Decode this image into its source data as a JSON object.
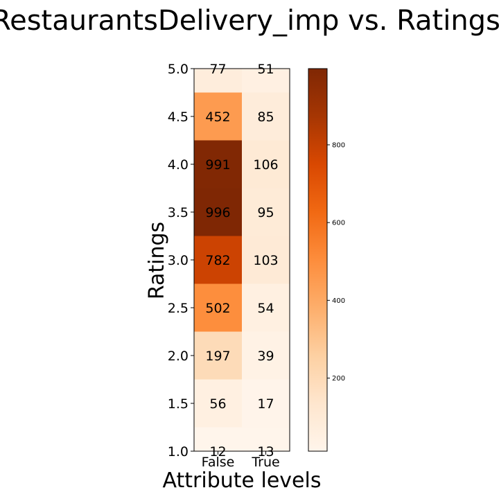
{
  "chart_data": {
    "type": "heatmap",
    "title": "RestaurantsDelivery_imp vs. Ratings",
    "xlabel": "Attribute levels",
    "ylabel": "Ratings",
    "columns": [
      "False",
      "True"
    ],
    "rows": [
      "5.0",
      "4.5",
      "4.0",
      "3.5",
      "3.0",
      "2.5",
      "2.0",
      "1.5",
      "1.0"
    ],
    "values": [
      [
        77,
        51
      ],
      [
        452,
        85
      ],
      [
        991,
        106
      ],
      [
        996,
        95
      ],
      [
        782,
        103
      ],
      [
        502,
        54
      ],
      [
        197,
        39
      ],
      [
        56,
        17
      ],
      [
        12,
        13
      ]
    ],
    "y_ticks": [
      "5.0",
      "4.5",
      "4.0",
      "3.5",
      "3.0",
      "2.5",
      "2.0",
      "1.5",
      "1.0"
    ],
    "x_ticks": [
      "False",
      "True"
    ],
    "colormap": "Oranges",
    "colorbar": {
      "vmin": 12,
      "vmax": 996,
      "ticks": [
        200,
        400,
        600,
        800
      ],
      "tick_labels": [
        "200",
        "400",
        "600",
        "800"
      ]
    },
    "legend": "none",
    "grid": false
  }
}
